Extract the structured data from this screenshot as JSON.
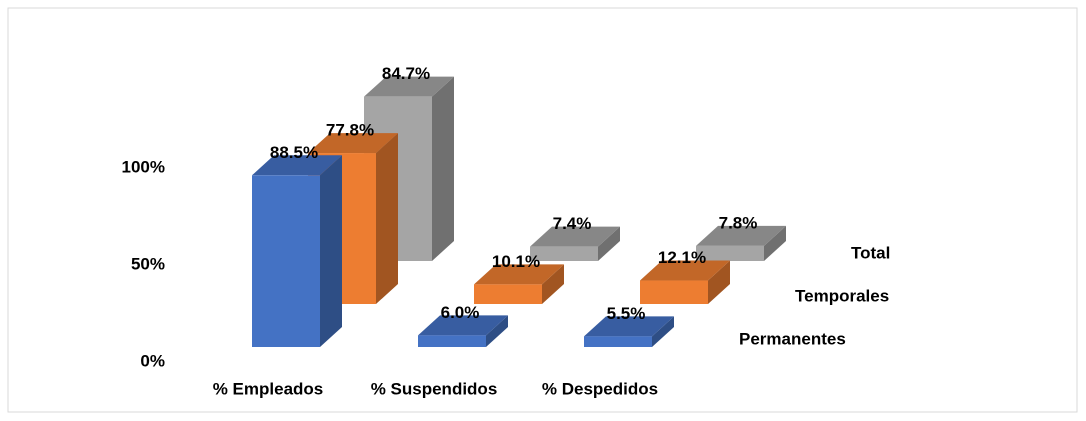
{
  "chart_data": {
    "type": "bar3d",
    "categories": [
      "% Empleados",
      "% Suspendidos",
      "% Despedidos"
    ],
    "series": [
      {
        "name": "Permanentes",
        "color": "#4472c4",
        "values": [
          88.5,
          6.0,
          5.5
        ],
        "value_labels": [
          "88.5%",
          "6.0%",
          "5.5%"
        ]
      },
      {
        "name": "Temporales",
        "color": "#ed7d31",
        "values": [
          77.8,
          10.1,
          12.1
        ],
        "value_labels": [
          "77.8%",
          "10.1%",
          "12.1%"
        ]
      },
      {
        "name": "Total",
        "color": "#a5a5a5",
        "values": [
          84.7,
          7.4,
          7.8
        ],
        "value_labels": [
          "84.7%",
          "7.4%",
          "7.8%"
        ]
      }
    ],
    "ylim": [
      0,
      100
    ],
    "yticks": [
      {
        "value": 0,
        "label": "0%"
      },
      {
        "value": 50,
        "label": "50%"
      },
      {
        "value": 100,
        "label": "100%"
      }
    ]
  }
}
